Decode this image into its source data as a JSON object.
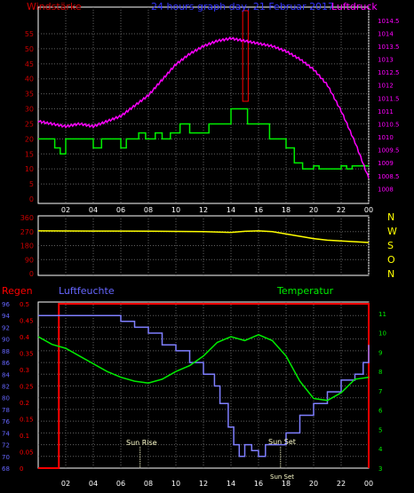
{
  "colors": {
    "background": "#000000",
    "grid": "#606060",
    "frame": "#ffffff",
    "wind": "#00ee00",
    "pressure": "#ff00ff",
    "direction": "#ffff00",
    "rain": "#ff0000",
    "humidity": "#7f7fff",
    "temperature": "#00ee00",
    "title": "#3333ff",
    "wind_label": "#cc0000",
    "rain_label": "#ff0000",
    "humidity_label": "#6666ff",
    "temperature_label": "#00ee00",
    "compass_label": "#ffff00",
    "sun_label": "#ffffcc"
  },
  "chart_data": [
    {
      "type": "line",
      "title": "24 hours graph day, 21 Februar 2017",
      "x_ticks": [
        "02",
        "04",
        "06",
        "08",
        "10",
        "12",
        "14",
        "16",
        "18",
        "20",
        "22",
        "00"
      ],
      "x_hours_range": [
        0,
        24
      ],
      "series": [
        {
          "name": "Windstärke",
          "axis": "left",
          "ylim": [
            0,
            60
          ],
          "y_ticks": [
            0,
            5,
            10,
            15,
            20,
            25,
            30,
            35,
            40,
            45,
            50,
            55
          ],
          "step": true,
          "points": [
            [
              0,
              20
            ],
            [
              1.2,
              17
            ],
            [
              1.6,
              15
            ],
            [
              2,
              20
            ],
            [
              3.5,
              20
            ],
            [
              4,
              17
            ],
            [
              4.6,
              20
            ],
            [
              5.4,
              20
            ],
            [
              6,
              17
            ],
            [
              6.4,
              20
            ],
            [
              7.3,
              22
            ],
            [
              7.8,
              20
            ],
            [
              8.5,
              22
            ],
            [
              9,
              20
            ],
            [
              9.6,
              22
            ],
            [
              10.3,
              25
            ],
            [
              11,
              22
            ],
            [
              11.8,
              22
            ],
            [
              12.4,
              25
            ],
            [
              13.9,
              25
            ],
            [
              14,
              30
            ],
            [
              15.1,
              30
            ],
            [
              15.2,
              25
            ],
            [
              16.6,
              25
            ],
            [
              16.8,
              20
            ],
            [
              18,
              17
            ],
            [
              18.6,
              12
            ],
            [
              19.2,
              10
            ],
            [
              19.6,
              10
            ],
            [
              20,
              11
            ],
            [
              20.4,
              10
            ],
            [
              21,
              10
            ],
            [
              21.6,
              10
            ],
            [
              22,
              11
            ],
            [
              22.4,
              10
            ],
            [
              22.8,
              11
            ],
            [
              23.3,
              11
            ]
          ]
        },
        {
          "name": "Luftdruck",
          "axis": "right",
          "ylim": [
            1007.6,
            1014.8
          ],
          "y_ticks": [
            1008,
            1008.5,
            1009,
            1009.5,
            1010,
            1010.5,
            1011,
            1011.5,
            1012,
            1012.5,
            1013,
            1013.5,
            1014,
            1014.5
          ],
          "points": [
            [
              0,
              1010.6
            ],
            [
              1,
              1010.5
            ],
            [
              2,
              1010.4
            ],
            [
              3,
              1010.5
            ],
            [
              4,
              1010.4
            ],
            [
              5,
              1010.6
            ],
            [
              6,
              1010.8
            ],
            [
              7,
              1011.2
            ],
            [
              8,
              1011.6
            ],
            [
              9,
              1012.2
            ],
            [
              10,
              1012.8
            ],
            [
              11,
              1013.2
            ],
            [
              12,
              1013.5
            ],
            [
              13,
              1013.7
            ],
            [
              14,
              1013.8
            ],
            [
              15,
              1013.7
            ],
            [
              16,
              1013.6
            ],
            [
              17,
              1013.5
            ],
            [
              18,
              1013.3
            ],
            [
              19,
              1013.0
            ],
            [
              20,
              1012.6
            ],
            [
              21,
              1012.0
            ],
            [
              22,
              1011.0
            ],
            [
              23,
              1009.8
            ],
            [
              24,
              1008.4
            ]
          ]
        },
        {
          "name": "Luftdruck max",
          "axis": "right",
          "note_free": true,
          "points": []
        }
      ],
      "labels": {
        "left": "Windstärke",
        "right": "Luftdruck",
        "title": "24 hours graph day, 21 Februar 2017"
      }
    },
    {
      "type": "line",
      "title": "",
      "ylim": [
        0,
        360
      ],
      "y_ticks": [
        0,
        90,
        180,
        270,
        360
      ],
      "compass": [
        "N",
        "W",
        "S",
        "O",
        "N"
      ],
      "series": [
        {
          "name": "Windrichtung",
          "points": [
            [
              0,
              275
            ],
            [
              4,
              274
            ],
            [
              8,
              273
            ],
            [
              12,
              270
            ],
            [
              14,
              265
            ],
            [
              15,
              272
            ],
            [
              16,
              275
            ],
            [
              17,
              270
            ],
            [
              18,
              255
            ],
            [
              19,
              240
            ],
            [
              20,
              225
            ],
            [
              21,
              215
            ],
            [
              22,
              210
            ],
            [
              23,
              205
            ],
            [
              24,
              200
            ]
          ]
        }
      ]
    },
    {
      "type": "line",
      "title": "",
      "x_ticks": [
        "02",
        "04",
        "06",
        "08",
        "10",
        "12",
        "14",
        "16",
        "18",
        "20",
        "22",
        "00"
      ],
      "annotations": [
        "Sun Rise",
        "Sun Set"
      ],
      "series": [
        {
          "name": "Regen",
          "axis": "rain",
          "ylim": [
            0,
            0.5
          ],
          "y_ticks": [
            0,
            0.05,
            0.1,
            0.15,
            0.2,
            0.25,
            0.3,
            0.35,
            0.4,
            0.45,
            0.5
          ],
          "points": [
            [
              0,
              0
            ],
            [
              1.5,
              0
            ],
            [
              1.5,
              0.5
            ],
            [
              24,
              0.5
            ],
            [
              24,
              0
            ]
          ]
        },
        {
          "name": "Luftfeuchte",
          "axis": "humidity",
          "ylim": [
            68,
            96
          ],
          "y_ticks": [
            68,
            70,
            72,
            74,
            76,
            78,
            80,
            82,
            84,
            86,
            88,
            90,
            92,
            94,
            96
          ],
          "points": [
            [
              0,
              94
            ],
            [
              5,
              94
            ],
            [
              6,
              93
            ],
            [
              7,
              92
            ],
            [
              8,
              91
            ],
            [
              9,
              89
            ],
            [
              10,
              88
            ],
            [
              11,
              86
            ],
            [
              12,
              84
            ],
            [
              12.8,
              82
            ],
            [
              13.2,
              79
            ],
            [
              13.8,
              75
            ],
            [
              14.2,
              72
            ],
            [
              14.6,
              70
            ],
            [
              15,
              72
            ],
            [
              15.5,
              71
            ],
            [
              16,
              70
            ],
            [
              16.5,
              72
            ],
            [
              17,
              72
            ],
            [
              18,
              74
            ],
            [
              19,
              77
            ],
            [
              20,
              79
            ],
            [
              21,
              81
            ],
            [
              22,
              83
            ],
            [
              23,
              84
            ],
            [
              23.6,
              86
            ],
            [
              24,
              89
            ]
          ]
        },
        {
          "name": "Temperatur",
          "axis": "temperature",
          "ylim": [
            3,
            11.5
          ],
          "y_ticks": [
            3,
            4,
            5,
            6,
            7,
            8,
            9,
            10,
            11
          ],
          "points": [
            [
              0,
              9.8
            ],
            [
              1,
              9.4
            ],
            [
              2,
              9.2
            ],
            [
              3,
              8.8
            ],
            [
              4,
              8.4
            ],
            [
              5,
              8.0
            ],
            [
              6,
              7.7
            ],
            [
              7,
              7.5
            ],
            [
              8,
              7.4
            ],
            [
              9,
              7.6
            ],
            [
              10,
              8.0
            ],
            [
              11,
              8.3
            ],
            [
              12,
              8.8
            ],
            [
              13,
              9.5
            ],
            [
              14,
              9.8
            ],
            [
              15,
              9.6
            ],
            [
              16,
              9.9
            ],
            [
              17,
              9.6
            ],
            [
              18,
              8.8
            ],
            [
              19,
              7.5
            ],
            [
              20,
              6.6
            ],
            [
              21,
              6.5
            ],
            [
              22,
              6.9
            ],
            [
              23,
              7.6
            ],
            [
              24,
              7.7
            ]
          ]
        }
      ],
      "labels": {
        "rain": "Regen",
        "humidity": "Luftfeuchte",
        "temperature": "Temperatur",
        "sun_rise": "Sun Rise",
        "sun_set": "Sun Set",
        "sun_set_short": "Sun Set"
      }
    }
  ],
  "pressure_peak": {
    "hour_start": 14.85,
    "hour_end": 15.25
  }
}
